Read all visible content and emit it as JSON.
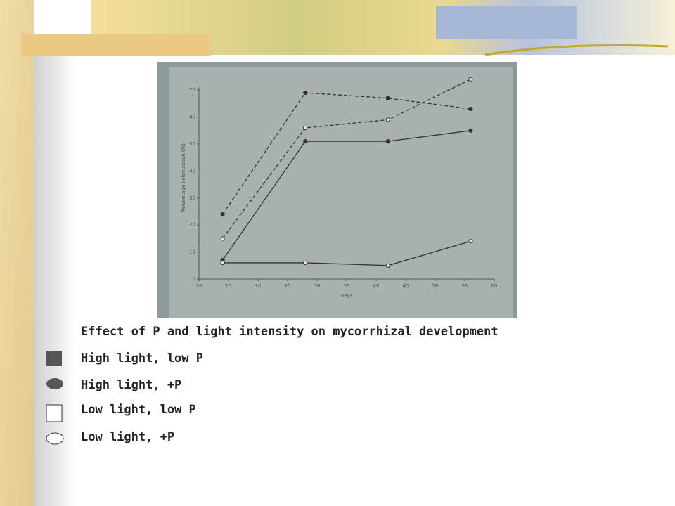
{
  "caption": "Effect of P and light intensity on mycorrhizal development",
  "legend": [
    "High light, low P",
    "High light, +P",
    "Low light, low P",
    "Low light, +P"
  ],
  "chart_data": {
    "type": "line",
    "x_label": "Days",
    "y_label": "Percentage colonization (%)",
    "x": [
      14,
      28,
      42,
      56
    ],
    "series": [
      {
        "color": "#333333",
        "style": "dashed",
        "marker": "filled",
        "values": [
          24,
          69,
          67,
          63
        ]
      },
      {
        "color": "#333333",
        "style": "dashed",
        "marker": "open",
        "values": [
          15,
          56,
          59,
          74
        ]
      },
      {
        "color": "#333333",
        "style": "solid",
        "marker": "filled",
        "values": [
          7,
          51,
          51,
          55
        ]
      },
      {
        "color": "#333333",
        "style": "solid",
        "marker": "open",
        "values": [
          6,
          6,
          5,
          14
        ]
      }
    ],
    "xlim": [
      10,
      60
    ],
    "xticks": [
      10,
      15,
      20,
      25,
      30,
      35,
      40,
      45,
      50,
      55,
      60
    ],
    "ylim": [
      0,
      75
    ],
    "yticks": [
      0,
      10,
      20,
      30,
      40,
      50,
      60,
      70
    ]
  }
}
